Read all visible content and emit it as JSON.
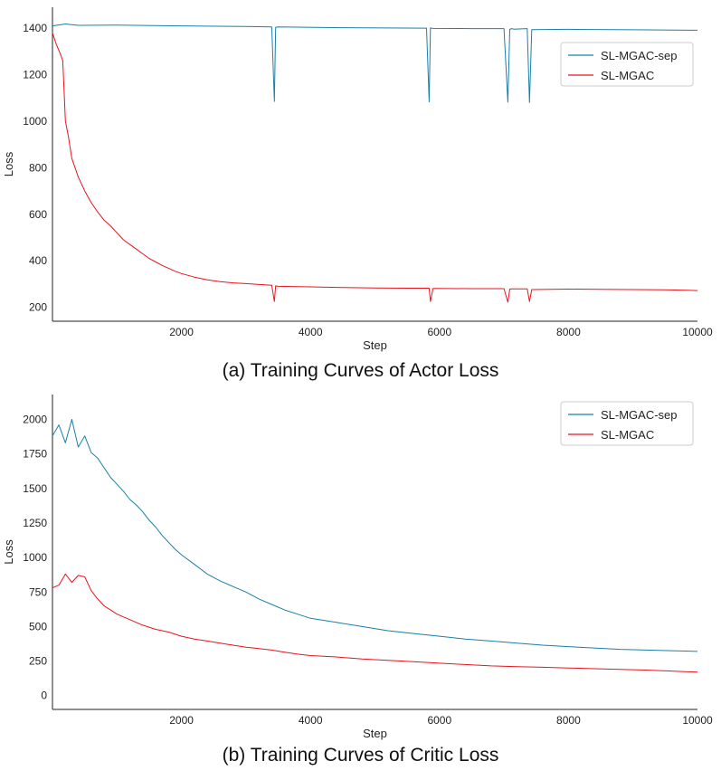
{
  "charts": [
    {
      "id": "actor",
      "caption": "(a) Training Curves of Actor Loss",
      "chart_data": {
        "type": "line",
        "title": "",
        "xlabel": "Step",
        "ylabel": "Loss",
        "xlim": [
          0,
          10000
        ],
        "ylim": [
          140,
          1490
        ],
        "xticks": [
          2000,
          4000,
          6000,
          8000,
          10000
        ],
        "yticks": [
          200,
          400,
          600,
          800,
          1000,
          1200,
          1400
        ],
        "grid": false,
        "legend_position": "top-right",
        "series": [
          {
            "name": "SL-MGAC-sep",
            "color": "#1a7fa8",
            "x": [
              0,
              200,
              400,
              1000,
              2000,
              3000,
              3400,
              3440,
              3460,
              3500,
              4500,
              5800,
              5840,
              5860,
              5900,
              6500,
              7000,
              7060,
              7090,
              7120,
              7150,
              7360,
              7395,
              7430,
              8000,
              9000,
              10000
            ],
            "y": [
              1410,
              1418,
              1412,
              1413,
              1410,
              1407,
              1405,
              1085,
              1404,
              1405,
              1402,
              1400,
              1083,
              1401,
              1399,
              1398,
              1398,
              1082,
              1395,
              1398,
              1396,
              1398,
              1080,
              1394,
              1395,
              1393,
              1391
            ]
          },
          {
            "name": "SL-MGAC",
            "color": "#e8141e",
            "x": [
              0,
              60,
              120,
              160,
              200,
              250,
              300,
              400,
              500,
              600,
              700,
              800,
              900,
              1000,
              1100,
              1200,
              1300,
              1400,
              1500,
              1600,
              1700,
              1800,
              1900,
              2000,
              2200,
              2400,
              2600,
              2800,
              3000,
              3200,
              3400,
              3440,
              3460,
              3500,
              4000,
              4500,
              5000,
              5500,
              5840,
              5860,
              5900,
              6500,
              7000,
              7060,
              7090,
              7120,
              7360,
              7395,
              7430,
              8000,
              8500,
              9000,
              9500,
              10000
            ],
            "y": [
              1380,
              1330,
              1290,
              1260,
              1000,
              930,
              840,
              760,
              700,
              650,
              610,
              575,
              550,
              520,
              490,
              470,
              450,
              430,
              410,
              395,
              380,
              368,
              355,
              345,
              330,
              318,
              310,
              305,
              302,
              298,
              295,
              225,
              292,
              290,
              288,
              285,
              283,
              282,
              282,
              225,
              281,
              280,
              280,
              222,
              278,
              279,
              279,
              225,
              276,
              278,
              277,
              276,
              275,
              272
            ]
          }
        ]
      }
    },
    {
      "id": "critic",
      "caption": "(b) Training Curves of Critic Loss",
      "chart_data": {
        "type": "line",
        "title": "",
        "xlabel": "Step",
        "ylabel": "Loss",
        "xlim": [
          0,
          10000
        ],
        "ylim": [
          -100,
          2180
        ],
        "xticks": [
          2000,
          4000,
          6000,
          8000,
          10000
        ],
        "yticks": [
          0,
          250,
          500,
          750,
          1000,
          1250,
          1500,
          1750,
          2000
        ],
        "yticklabels": [
          "0",
          "250",
          "500",
          "750",
          "1000",
          "1250",
          "1500",
          "1750",
          "2000"
        ],
        "grid": false,
        "legend_position": "top-right",
        "series": [
          {
            "name": "SL-MGAC-sep",
            "color": "#1a7fa8",
            "x": [
              0,
              100,
              200,
              300,
              400,
              500,
              600,
              700,
              800,
              900,
              1000,
              1100,
              1200,
              1300,
              1400,
              1500,
              1600,
              1700,
              1800,
              1900,
              2000,
              2200,
              2400,
              2600,
              2800,
              3000,
              3200,
              3400,
              3600,
              3800,
              4000,
              4400,
              4800,
              5200,
              5600,
              6000,
              6400,
              6800,
              7200,
              7600,
              8000,
              8400,
              8800,
              9200,
              9600,
              10000
            ],
            "y": [
              1880,
              1960,
              1830,
              2000,
              1800,
              1880,
              1760,
              1720,
              1650,
              1580,
              1530,
              1480,
              1420,
              1380,
              1330,
              1270,
              1220,
              1160,
              1110,
              1060,
              1020,
              950,
              880,
              830,
              790,
              750,
              700,
              660,
              620,
              590,
              560,
              530,
              500,
              470,
              450,
              430,
              410,
              395,
              380,
              365,
              355,
              345,
              335,
              330,
              325,
              320
            ]
          },
          {
            "name": "SL-MGAC",
            "color": "#e8141e",
            "x": [
              0,
              100,
              200,
              300,
              400,
              500,
              600,
              700,
              800,
              900,
              1000,
              1200,
              1400,
              1600,
              1800,
              2000,
              2200,
              2400,
              2600,
              2800,
              3000,
              3200,
              3400,
              3600,
              3800,
              4000,
              4400,
              4800,
              5200,
              5600,
              6000,
              6400,
              6800,
              7200,
              7600,
              8000,
              8400,
              8800,
              9200,
              9600,
              10000
            ],
            "y": [
              780,
              800,
              880,
              820,
              870,
              860,
              760,
              700,
              650,
              620,
              590,
              550,
              510,
              480,
              460,
              430,
              410,
              395,
              380,
              365,
              350,
              340,
              330,
              315,
              300,
              290,
              280,
              265,
              255,
              245,
              235,
              225,
              215,
              210,
              205,
              200,
              195,
              190,
              185,
              178,
              170
            ]
          }
        ]
      }
    }
  ]
}
